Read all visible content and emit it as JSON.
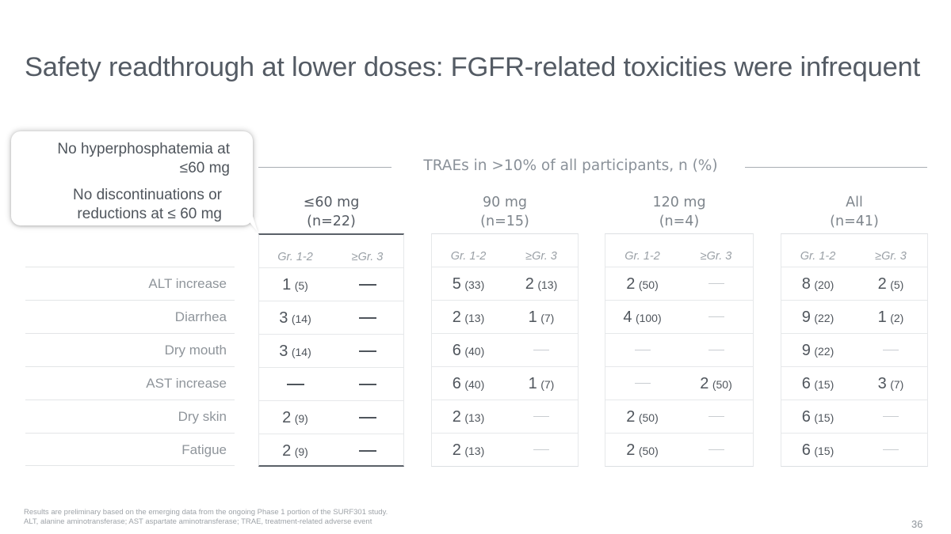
{
  "slide": {
    "title": "Safety readthrough at lower doses: FGFR-related toxicities were infrequent",
    "page_number": "36"
  },
  "callout": {
    "line1": "No hyperphosphatemia at ≤60 mg",
    "line2": "No discontinuations or reductions at ≤ 60 mg"
  },
  "table": {
    "section_title": "TRAEs in >10% of all participants, n (%)",
    "subheaders": [
      "Gr. 1-2",
      "≥Gr. 3"
    ],
    "groups": [
      {
        "label": "≤60 mg",
        "n": "(n=22)",
        "highlight": true
      },
      {
        "label": "90 mg",
        "n": "(n=15)",
        "highlight": false
      },
      {
        "label": "120 mg",
        "n": "(n=4)",
        "highlight": false
      },
      {
        "label": "All",
        "n": "(n=41)",
        "highlight": false
      }
    ],
    "rows": [
      {
        "label": "ALT increase",
        "values": [
          [
            {
              "n": "1",
              "p": "(5)"
            },
            null
          ],
          [
            {
              "n": "5",
              "p": "(33)"
            },
            {
              "n": "2",
              "p": "(13)"
            }
          ],
          [
            {
              "n": "2",
              "p": "(50)"
            },
            null
          ],
          [
            {
              "n": "8",
              "p": "(20)"
            },
            {
              "n": "2",
              "p": "(5)"
            }
          ]
        ]
      },
      {
        "label": "Diarrhea",
        "values": [
          [
            {
              "n": "3",
              "p": "(14)"
            },
            null
          ],
          [
            {
              "n": "2",
              "p": "(13)"
            },
            {
              "n": "1",
              "p": "(7)"
            }
          ],
          [
            {
              "n": "4",
              "p": "(100)"
            },
            null
          ],
          [
            {
              "n": "9",
              "p": "(22)"
            },
            {
              "n": "1",
              "p": "(2)"
            }
          ]
        ]
      },
      {
        "label": "Dry mouth",
        "values": [
          [
            {
              "n": "3",
              "p": "(14)"
            },
            null
          ],
          [
            {
              "n": "6",
              "p": "(40)"
            },
            null
          ],
          [
            null,
            null
          ],
          [
            {
              "n": "9",
              "p": "(22)"
            },
            null
          ]
        ]
      },
      {
        "label": "AST increase",
        "values": [
          [
            null,
            null
          ],
          [
            {
              "n": "6",
              "p": "(40)"
            },
            {
              "n": "1",
              "p": "(7)"
            }
          ],
          [
            null,
            {
              "n": "2",
              "p": "(50)"
            }
          ],
          [
            {
              "n": "6",
              "p": "(15)"
            },
            {
              "n": "3",
              "p": "(7)"
            }
          ]
        ]
      },
      {
        "label": "Dry skin",
        "values": [
          [
            {
              "n": "2",
              "p": "(9)"
            },
            null
          ],
          [
            {
              "n": "2",
              "p": "(13)"
            },
            null
          ],
          [
            {
              "n": "2",
              "p": "(50)"
            },
            null
          ],
          [
            {
              "n": "6",
              "p": "(15)"
            },
            null
          ]
        ]
      },
      {
        "label": "Fatigue",
        "values": [
          [
            {
              "n": "2",
              "p": "(9)"
            },
            null
          ],
          [
            {
              "n": "2",
              "p": "(13)"
            },
            null
          ],
          [
            {
              "n": "2",
              "p": "(50)"
            },
            null
          ],
          [
            {
              "n": "6",
              "p": "(15)"
            },
            null
          ]
        ]
      }
    ]
  },
  "footnote": {
    "line1": "Results are preliminary based on the emerging data from the ongoing Phase 1 portion of the SURF301 study.",
    "line2": "ALT, alanine aminotransferase; AST aspartate aminotransferase; TRAE, treatment-related adverse event"
  }
}
